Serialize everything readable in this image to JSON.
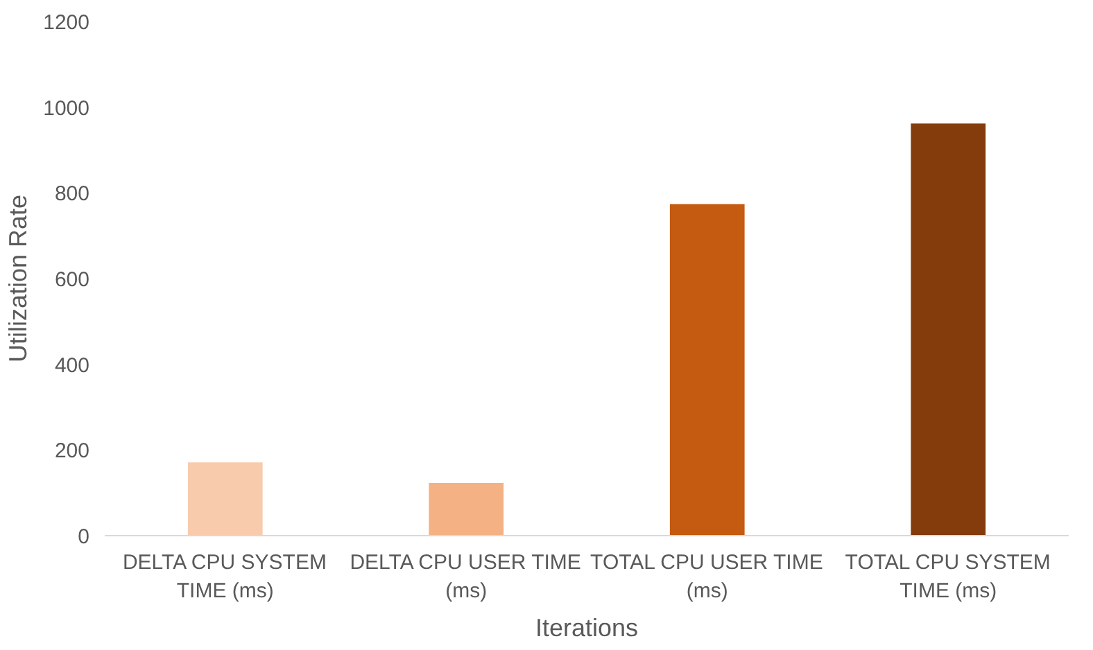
{
  "chart_data": {
    "type": "bar",
    "xlabel": "Iterations",
    "ylabel": "Utilization Rate",
    "categories": [
      "DELTA CPU SYSTEM TIME (ms)",
      "DELTA CPU USER TIME (ms)",
      "TOTAL CPU USER TIME (ms)",
      "TOTAL CPU SYSTEM TIME (ms)"
    ],
    "values": [
      171,
      123,
      774,
      962
    ],
    "colors": [
      "#f8cbad",
      "#f4b183",
      "#c55a11",
      "#843c0c"
    ],
    "ylim": [
      0,
      1200
    ],
    "yticks": [
      0,
      200,
      400,
      600,
      800,
      1000,
      1200
    ],
    "grid": false
  }
}
